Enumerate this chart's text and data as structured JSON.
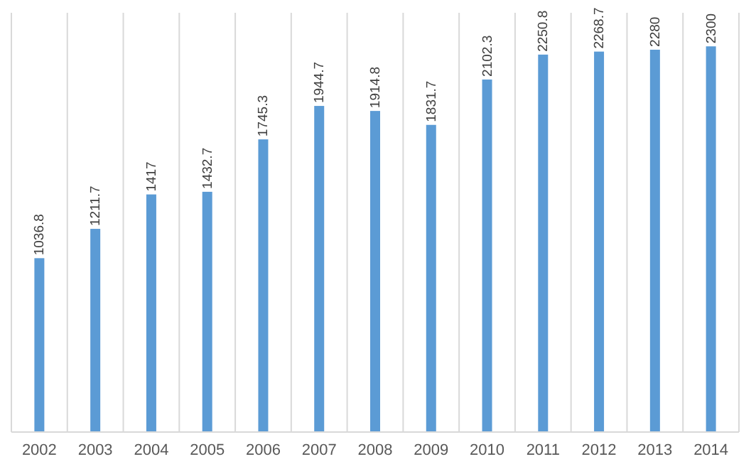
{
  "chart_data": {
    "type": "bar",
    "categories": [
      "2002",
      "2003",
      "2004",
      "2005",
      "2006",
      "2007",
      "2008",
      "2009",
      "2010",
      "2011",
      "2012",
      "2013",
      "2014"
    ],
    "values": [
      1036.8,
      1211.7,
      1417,
      1432.7,
      1745.3,
      1944.7,
      1914.8,
      1831.7,
      2102.3,
      2250.8,
      2268.7,
      2280,
      2300
    ],
    "color": "#5b9bd5",
    "data_labels": true,
    "grid": "x"
  }
}
